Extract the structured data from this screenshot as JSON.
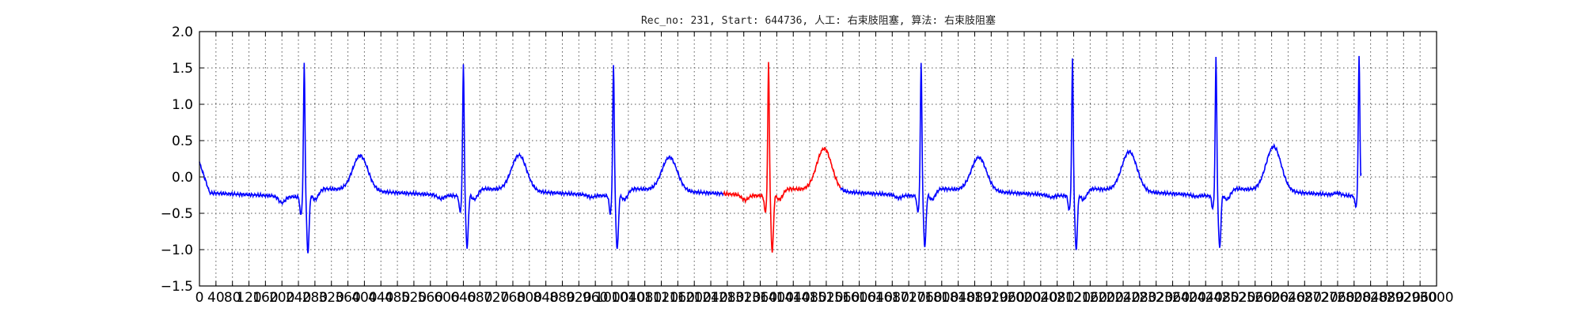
{
  "chart_data": {
    "type": "line",
    "title": "Rec_no: 231, Start: 644736, 人工: 右束肢阻塞, 算法: 右束肢阻塞",
    "xlabel": "",
    "ylabel": "",
    "xlim": [
      0,
      3000
    ],
    "ylim": [
      -1.5,
      2.0
    ],
    "yticks": [
      -1.5,
      -1.0,
      -0.5,
      0.0,
      0.5,
      1.0,
      1.5,
      2.0
    ],
    "ytick_labels": [
      "−1.5",
      "−1.0",
      "−0.5",
      "0.0",
      "0.5",
      "1.0",
      "1.5",
      "2.0"
    ],
    "xticks": [
      0,
      40,
      80,
      120,
      160,
      200,
      240,
      280,
      320,
      360,
      400,
      440,
      480,
      520,
      560,
      600,
      640,
      680,
      720,
      760,
      800,
      840,
      880,
      920,
      960,
      1000,
      1040,
      1080,
      1120,
      1160,
      1200,
      1240,
      1280,
      1320,
      1360,
      1400,
      1440,
      1480,
      1520,
      1560,
      1600,
      1640,
      1680,
      1720,
      1760,
      1800,
      1840,
      1880,
      1920,
      1960,
      2000,
      2040,
      2080,
      2120,
      2160,
      2200,
      2240,
      2280,
      2320,
      2360,
      2400,
      2440,
      2480,
      2520,
      2560,
      2600,
      2640,
      2680,
      2720,
      2760,
      2800,
      2840,
      2880,
      2920,
      2960,
      3000
    ],
    "xtick_labels": [
      "0",
      "40",
      "80",
      "120",
      "160",
      "200",
      "240",
      "280",
      "320",
      "360",
      "400",
      "440",
      "480",
      "520",
      "560",
      "600",
      "640",
      "680",
      "720",
      "760",
      "800",
      "840",
      "880",
      "920",
      "960",
      "1000",
      "1040",
      "1080",
      "1120",
      "1160",
      "1200",
      "1240",
      "1280",
      "1320",
      "1360",
      "1400",
      "1440",
      "1480",
      "1520",
      "1560",
      "1600",
      "1640",
      "1680",
      "1720",
      "1760",
      "1800",
      "1840",
      "1880",
      "1920",
      "1960",
      "2000",
      "2040",
      "2080",
      "2120",
      "2160",
      "2200",
      "2240",
      "2280",
      "2320",
      "2360",
      "2400",
      "2440",
      "2480",
      "2520",
      "2560",
      "2600",
      "2640",
      "2680",
      "2720",
      "2760",
      "2800",
      "2840",
      "2880",
      "2920",
      "2960",
      "3000"
    ],
    "grid": true,
    "grid_style": "dotted",
    "colors": {
      "signal": "#0000ff",
      "highlight": "#ff0000",
      "grid": "#555555",
      "frame": "#000000"
    },
    "baseline": {
      "start": 0.2,
      "post_start": -0.22,
      "pre_r": -0.28,
      "between_beats": -0.16
    },
    "beats": [
      {
        "r": 254,
        "q": -0.53,
        "r_amp": 1.44,
        "s": -1.02,
        "t_center": 390,
        "t_amp": 0.32,
        "p_center": 200,
        "p_amp": -0.09
      },
      {
        "r": 640,
        "q": -0.5,
        "r_amp": 1.45,
        "s": -0.95,
        "t_center": 775,
        "t_amp": 0.33,
        "p_center": 585,
        "p_amp": -0.05
      },
      {
        "r": 1004,
        "q": -0.52,
        "r_amp": 1.45,
        "s": -0.98,
        "t_center": 1140,
        "t_amp": 0.3,
        "p_center": 950,
        "p_amp": -0.03
      },
      {
        "r": 1380,
        "q": -0.5,
        "r_amp": 1.47,
        "s": -1.01,
        "t_center": 1515,
        "t_amp": 0.42,
        "p_center": 1323,
        "p_amp": -0.07
      },
      {
        "r": 1750,
        "q": -0.5,
        "r_amp": 1.48,
        "s": -0.94,
        "t_center": 1890,
        "t_amp": 0.3,
        "p_center": 1695,
        "p_amp": -0.04
      },
      {
        "r": 2117,
        "q": -0.48,
        "r_amp": 1.5,
        "s": -0.98,
        "t_center": 2255,
        "t_amp": 0.38,
        "p_center": 2065,
        "p_amp": -0.03
      },
      {
        "r": 2465,
        "q": -0.45,
        "r_amp": 1.54,
        "s": -0.96,
        "t_center": 2605,
        "t_amp": 0.45,
        "p_center": 2415,
        "p_amp": -0.02
      },
      {
        "r": 2812,
        "q": -0.42,
        "r_amp": 1.56,
        "s": null,
        "t_center": null,
        "t_amp": null,
        "p_center": 2760,
        "p_amp": 0.03
      }
    ],
    "signal_end_x": 2817,
    "signal_end_y": 0.05,
    "highlight_range": [
      1270,
      1555
    ]
  }
}
